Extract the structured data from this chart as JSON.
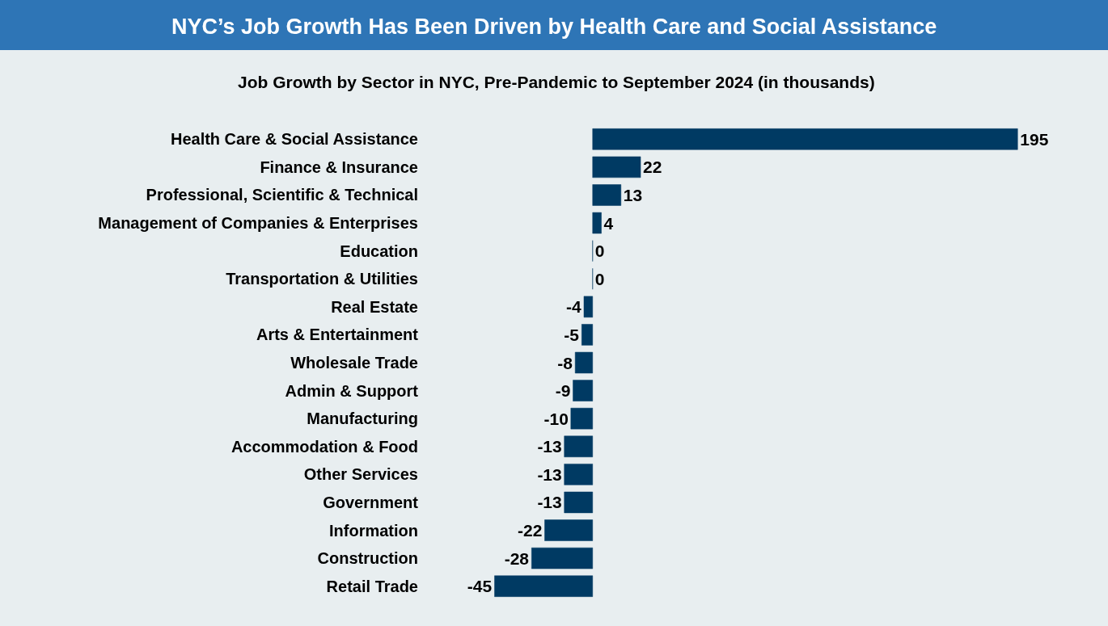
{
  "chart_data": {
    "type": "bar",
    "orientation": "horizontal",
    "title": "NYC’s Job Growth Has Been Driven by Health Care and Social Assistance",
    "subtitle": "Job Growth by Sector in NYC, Pre-Pandemic to September 2024 (in thousands)",
    "categories": [
      "Health Care & Social Assistance",
      "Finance & Insurance",
      "Professional, Scientific & Technical",
      "Management of Companies & Enterprises",
      "Education",
      "Transportation & Utilities",
      "Real Estate",
      "Arts & Entertainment",
      "Wholesale Trade",
      "Admin & Support",
      "Manufacturing",
      "Accommodation & Food",
      "Other Services",
      "Government",
      "Information",
      "Construction",
      "Retail Trade"
    ],
    "values": [
      195,
      22,
      13,
      4,
      0,
      0,
      -4,
      -5,
      -8,
      -9,
      -10,
      -13,
      -13,
      -13,
      -22,
      -28,
      -45
    ],
    "color": "#003a63",
    "data_labels": true,
    "grid": false
  }
}
